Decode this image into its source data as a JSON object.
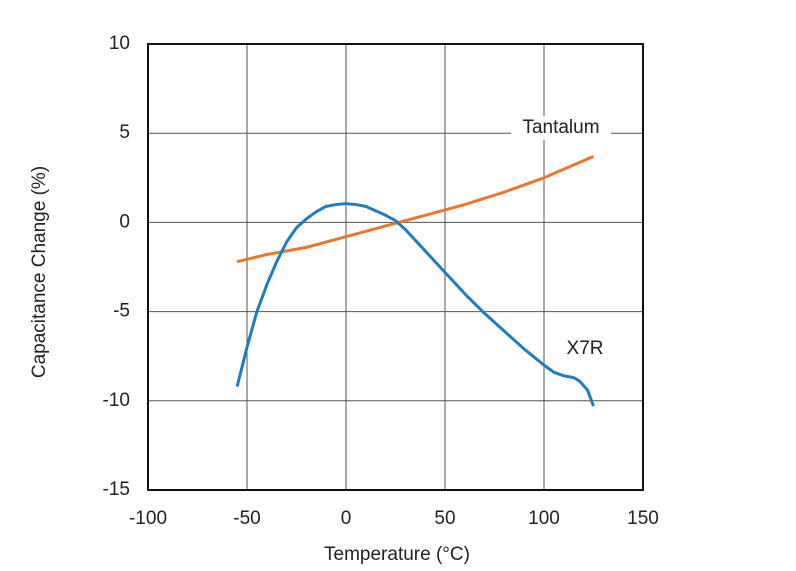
{
  "chart_data": {
    "type": "line",
    "x_label": "Temperature (°C)",
    "y_label": "Capacitance Change (%)",
    "xlim": [
      -100,
      150
    ],
    "xticks": [
      -100,
      -50,
      0,
      50,
      100,
      150
    ],
    "ylim": [
      -15,
      10
    ],
    "yticks": [
      -15,
      -10,
      -5,
      0,
      5,
      10
    ],
    "grid": true,
    "series": [
      {
        "name": "Tantalum",
        "color": "#e8782f",
        "x": [
          -55,
          -40,
          -20,
          0,
          20,
          40,
          60,
          80,
          100,
          125
        ],
        "values": [
          -2.2,
          -1.8,
          -1.4,
          -0.8,
          -0.2,
          0.4,
          1.0,
          1.7,
          2.5,
          3.7
        ]
      },
      {
        "name": "X7R",
        "color": "#1f7dbd",
        "x": [
          -55,
          -50,
          -45,
          -40,
          -35,
          -30,
          -25,
          -20,
          -15,
          -10,
          -5,
          0,
          5,
          10,
          20,
          25,
          30,
          40,
          50,
          60,
          70,
          80,
          90,
          100,
          105,
          110,
          115,
          118,
          122,
          125
        ],
        "values": [
          -9.2,
          -7.0,
          -5.0,
          -3.5,
          -2.2,
          -1.1,
          -0.3,
          0.2,
          0.6,
          0.9,
          1.0,
          1.05,
          1.0,
          0.9,
          0.4,
          0.1,
          -0.4,
          -1.6,
          -2.8,
          -4.0,
          -5.1,
          -6.1,
          -7.1,
          -8.0,
          -8.4,
          -8.6,
          -8.7,
          -8.9,
          -9.4,
          -10.3
        ]
      }
    ]
  }
}
